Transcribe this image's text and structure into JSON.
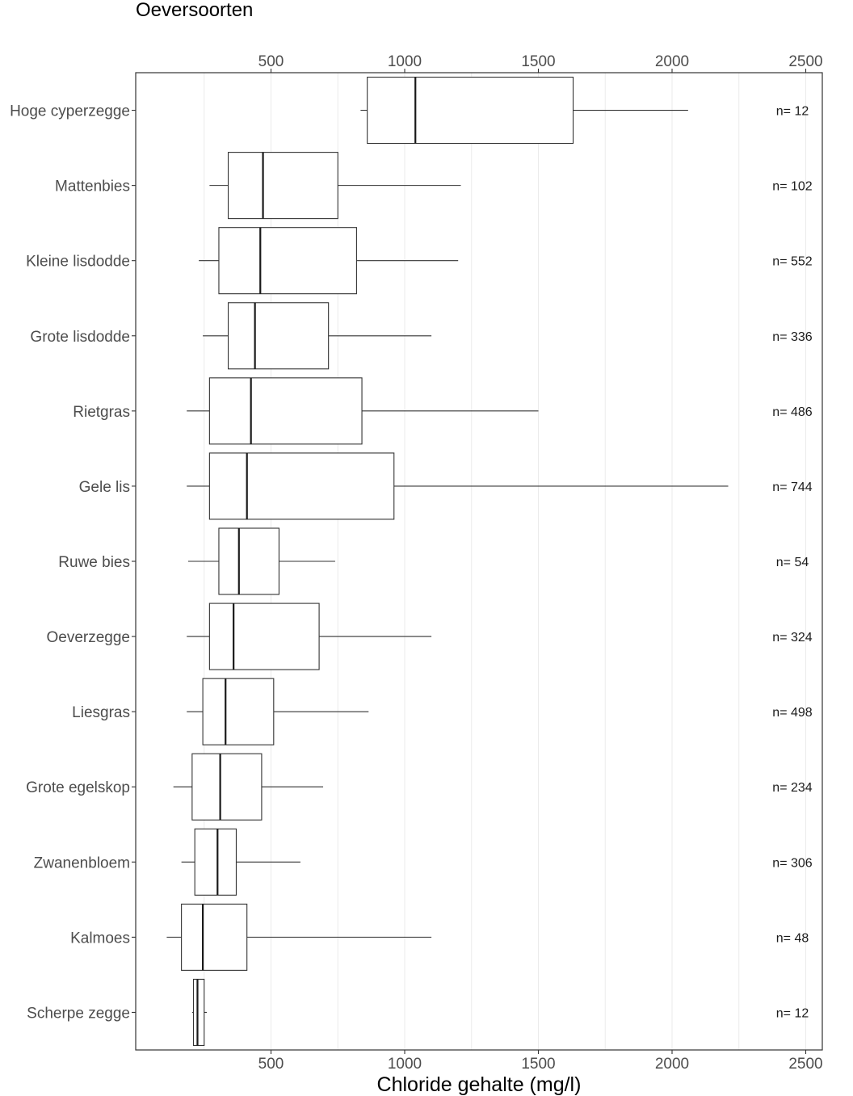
{
  "chart_data": {
    "type": "boxplot",
    "orientation": "horizontal",
    "title": "Oeversoorten",
    "xlabel": "Chloride gehalte (mg/l)",
    "xlim": [
      0,
      2560
    ],
    "x_ticks": [
      500,
      1000,
      1500,
      2000,
      2500
    ],
    "x_tick_labels": [
      "500",
      "1000",
      "1500",
      "2000",
      "2500"
    ],
    "x_axis_top": true,
    "x_axis_bottom": true,
    "grid": "vertical",
    "series": [
      {
        "category": "Hoge cyperzegge",
        "whisker_low": 835,
        "q1": 860,
        "median": 1040,
        "q3": 1630,
        "whisker_high": 2060,
        "n_label": "n= 12"
      },
      {
        "category": "Mattenbies",
        "whisker_low": 270,
        "q1": 340,
        "median": 470,
        "q3": 750,
        "whisker_high": 1210,
        "n_label": "n= 102"
      },
      {
        "category": "Kleine lisdodde",
        "whisker_low": 230,
        "q1": 305,
        "median": 460,
        "q3": 820,
        "whisker_high": 1200,
        "n_label": "n= 552"
      },
      {
        "category": "Grote lisdodde",
        "whisker_low": 245,
        "q1": 340,
        "median": 440,
        "q3": 715,
        "whisker_high": 1100,
        "n_label": "n= 336"
      },
      {
        "category": "Rietgras",
        "whisker_low": 185,
        "q1": 270,
        "median": 425,
        "q3": 840,
        "whisker_high": 1500,
        "n_label": "n= 486"
      },
      {
        "category": "Gele lis",
        "whisker_low": 185,
        "q1": 270,
        "median": 410,
        "q3": 960,
        "whisker_high": 2210,
        "n_label": "n= 744"
      },
      {
        "category": "Ruwe bies",
        "whisker_low": 190,
        "q1": 305,
        "median": 380,
        "q3": 530,
        "whisker_high": 740,
        "n_label": "n= 54"
      },
      {
        "category": "Oeverzegge",
        "whisker_low": 185,
        "q1": 270,
        "median": 360,
        "q3": 680,
        "whisker_high": 1100,
        "n_label": "n= 324"
      },
      {
        "category": "Liesgras",
        "whisker_low": 185,
        "q1": 245,
        "median": 330,
        "q3": 510,
        "whisker_high": 865,
        "n_label": "n= 498"
      },
      {
        "category": "Grote egelskop",
        "whisker_low": 135,
        "q1": 205,
        "median": 310,
        "q3": 465,
        "whisker_high": 695,
        "n_label": "n= 234"
      },
      {
        "category": "Zwanenbloem",
        "whisker_low": 165,
        "q1": 215,
        "median": 300,
        "q3": 370,
        "whisker_high": 610,
        "n_label": "n= 306"
      },
      {
        "category": "Kalmoes",
        "whisker_low": 110,
        "q1": 165,
        "median": 245,
        "q3": 410,
        "whisker_high": 1100,
        "n_label": "n= 48"
      },
      {
        "category": "Scherpe zegge",
        "whisker_low": 205,
        "q1": 210,
        "median": 225,
        "q3": 250,
        "whisker_high": 260,
        "n_label": "n= 12"
      }
    ]
  }
}
